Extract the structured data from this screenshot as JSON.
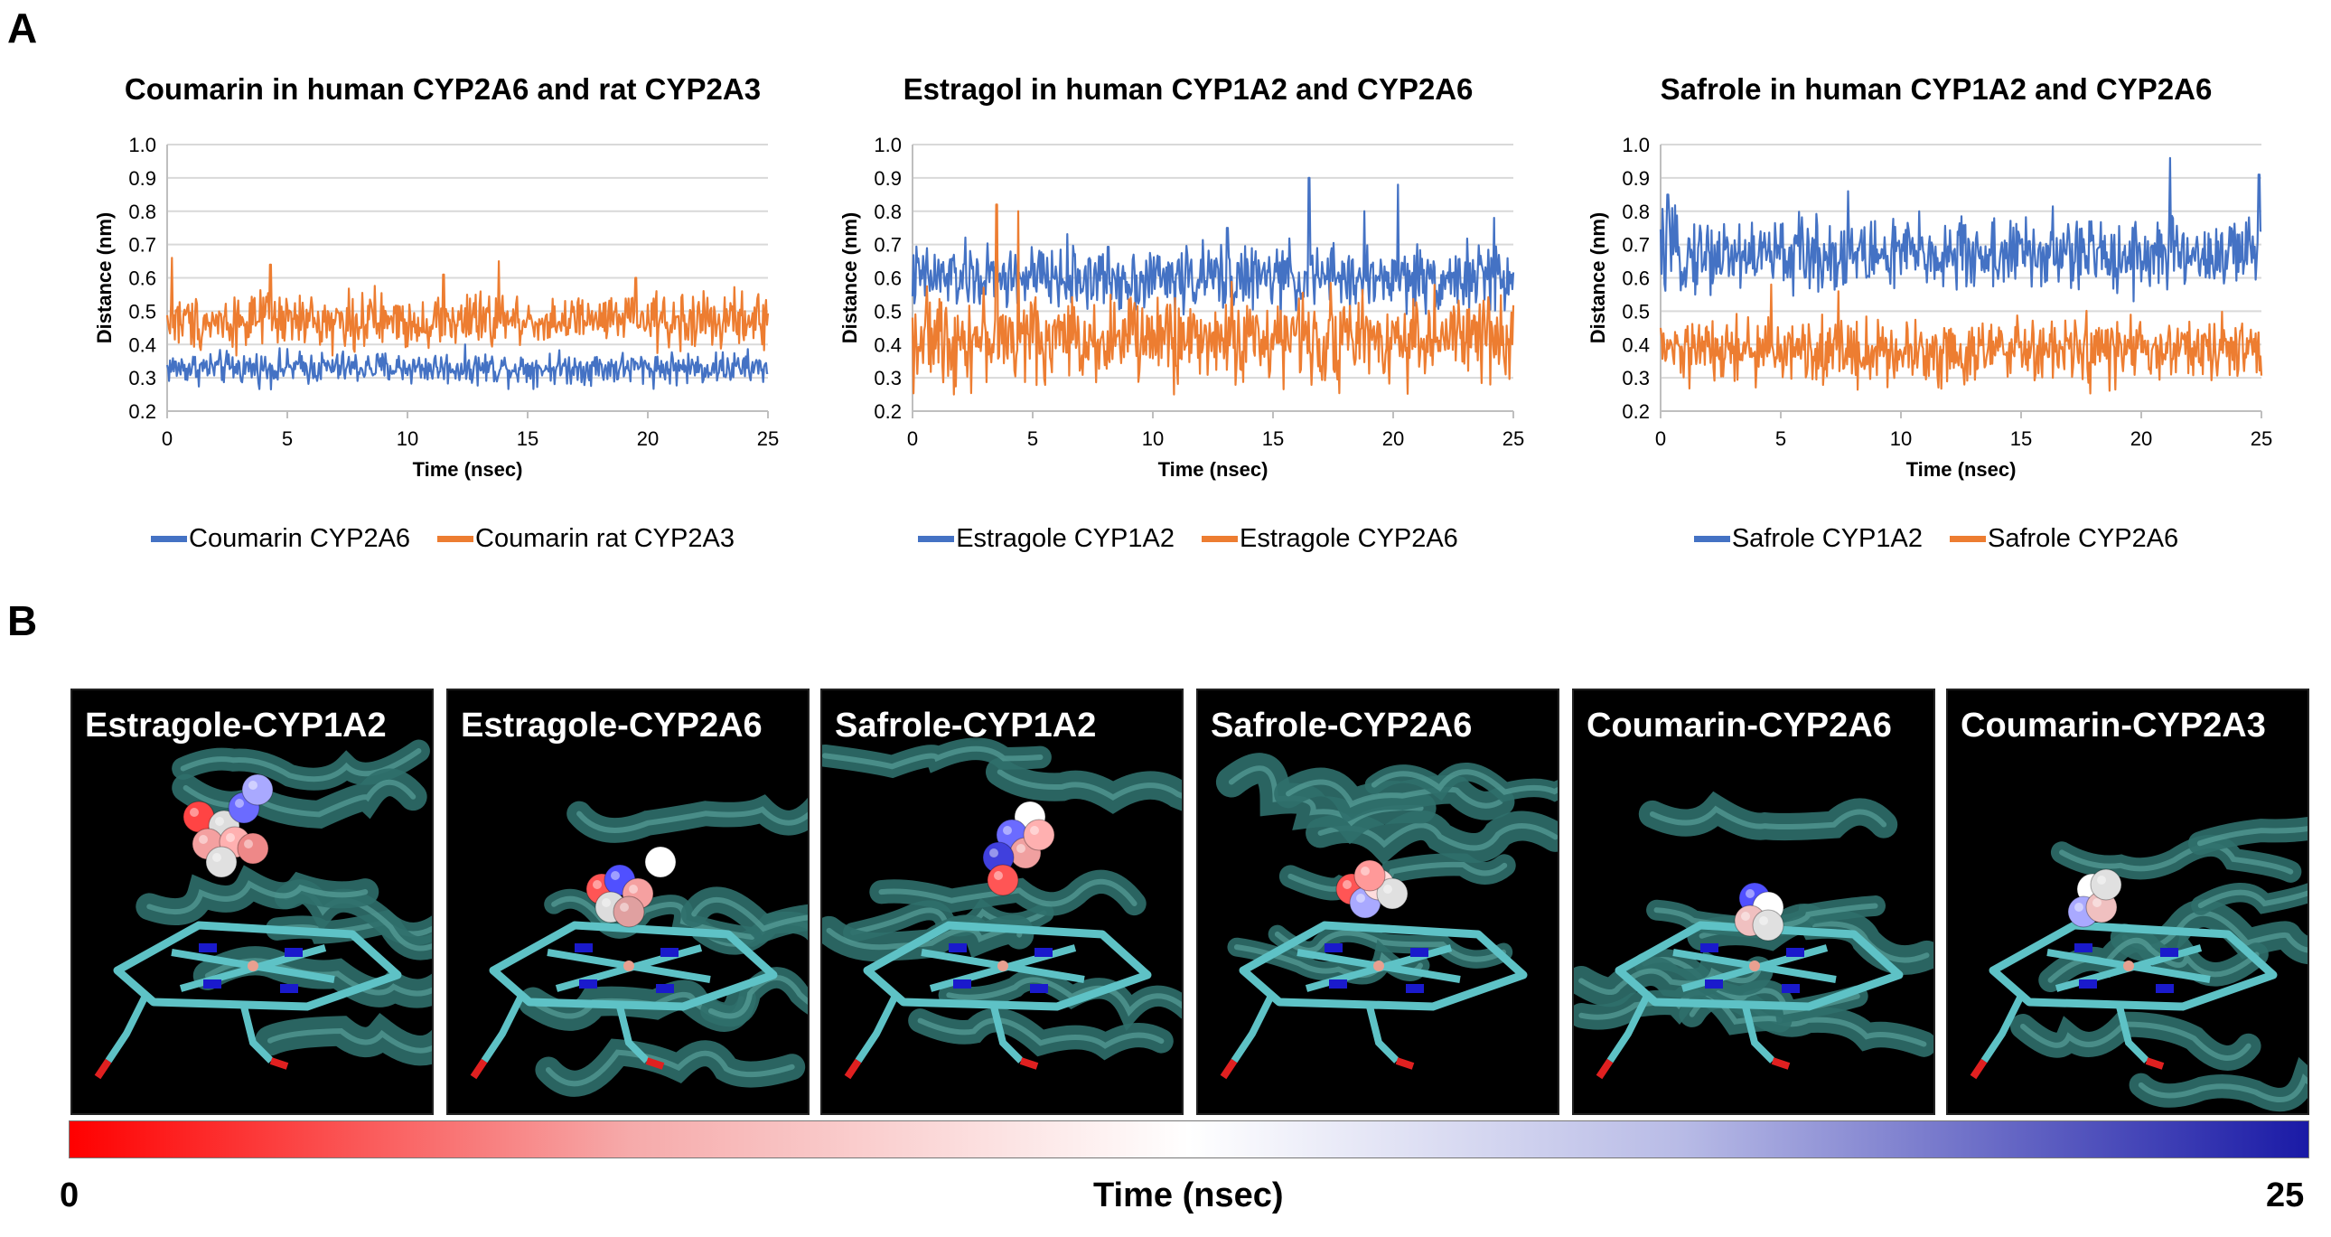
{
  "panels": {
    "a": "A",
    "b": "B"
  },
  "chart_data": [
    {
      "type": "line",
      "title": "Coumarin in human CYP2A6 and rat CYP2A3",
      "xlabel": "Time (nsec)",
      "ylabel": "Distance (nm)",
      "xlim": [
        0,
        25
      ],
      "ylim": [
        0.2,
        1.0
      ],
      "xticks": [
        0,
        5,
        10,
        15,
        20,
        25
      ],
      "yticks": [
        0.2,
        0.3,
        0.4,
        0.5,
        0.6,
        0.7,
        0.8,
        0.9,
        1.0
      ],
      "ytick_labels": [
        "0.2",
        "0.3",
        "0.4",
        "0.5",
        "0.6",
        "0.7",
        "0.8",
        "0.9",
        "1.0"
      ],
      "series": [
        {
          "name": "Coumarin CYP2A6",
          "color": "#4472c4",
          "mean": 0.33,
          "noise": 0.03,
          "spikes": [],
          "x_step": 0.04
        },
        {
          "name": "Coumarin rat CYP2A3",
          "color": "#ed7d31",
          "mean": 0.47,
          "noise": 0.05,
          "spikes": [
            [
              0.2,
              0.66
            ],
            [
              4.3,
              0.64
            ],
            [
              13.8,
              0.65
            ],
            [
              11.5,
              0.61
            ],
            [
              19.5,
              0.6
            ]
          ],
          "x_step": 0.04
        }
      ]
    },
    {
      "type": "line",
      "title": "Estragol in human CYP1A2 and CYP2A6",
      "xlabel": "Time (nsec)",
      "ylabel": "Distance (nm)",
      "xlim": [
        0,
        25
      ],
      "ylim": [
        0.2,
        1.0
      ],
      "xticks": [
        0,
        5,
        10,
        15,
        20,
        25
      ],
      "yticks": [
        0.2,
        0.3,
        0.4,
        0.5,
        0.6,
        0.7,
        0.8,
        0.9,
        1.0
      ],
      "ytick_labels": [
        "0.2",
        "0.3",
        "0.4",
        "0.5",
        "0.6",
        "0.7",
        "0.8",
        "0.9",
        "1.0"
      ],
      "series": [
        {
          "name": "Estragole CYP1A2",
          "color": "#4472c4",
          "mean": 0.6,
          "noise": 0.06,
          "spikes": [
            [
              16.5,
              0.9
            ],
            [
              20.2,
              0.88
            ],
            [
              13.1,
              0.75
            ],
            [
              18.8,
              0.8
            ],
            [
              24.2,
              0.78
            ]
          ],
          "x_step": 0.04
        },
        {
          "name": "Estragole CYP2A6",
          "color": "#ed7d31",
          "mean": 0.42,
          "noise": 0.08,
          "spikes": [
            [
              3.5,
              0.82
            ],
            [
              4.4,
              0.8
            ]
          ],
          "x_step": 0.04
        }
      ]
    },
    {
      "type": "line",
      "title": "Safrole in human CYP1A2 and CYP2A6",
      "xlabel": "Time (nsec)",
      "ylabel": "Distance (nm)",
      "xlim": [
        0,
        25
      ],
      "ylim": [
        0.2,
        1.0
      ],
      "xticks": [
        0,
        5,
        10,
        15,
        20,
        25
      ],
      "yticks": [
        0.2,
        0.3,
        0.4,
        0.5,
        0.6,
        0.7,
        0.8,
        0.9,
        1.0
      ],
      "ytick_labels": [
        "0.2",
        "0.3",
        "0.4",
        "0.5",
        "0.6",
        "0.7",
        "0.8",
        "0.9",
        "1.0"
      ],
      "series": [
        {
          "name": "Safrole CYP1A2",
          "color": "#4472c4",
          "mean": 0.67,
          "noise": 0.07,
          "spikes": [
            [
              21.2,
              0.96
            ],
            [
              24.9,
              0.91
            ],
            [
              0.3,
              0.85
            ],
            [
              7.8,
              0.86
            ]
          ],
          "x_step": 0.04
        },
        {
          "name": "Safrole CYP2A6",
          "color": "#ed7d31",
          "mean": 0.38,
          "noise": 0.06,
          "spikes": [
            [
              4.6,
              0.58
            ],
            [
              7.4,
              0.56
            ]
          ],
          "x_step": 0.04
        }
      ]
    }
  ],
  "tiles": [
    {
      "label": "Estragole-CYP1A2"
    },
    {
      "label": "Estragole-CYP2A6"
    },
    {
      "label": "Safrole-CYP1A2"
    },
    {
      "label": "Safrole-CYP2A6"
    },
    {
      "label": "Coumarin-CYP2A6"
    },
    {
      "label": "Coumarin-CYP2A3"
    }
  ],
  "colorbar": {
    "min_label": "0",
    "max_label": "25",
    "title": "Time (nsec)"
  }
}
